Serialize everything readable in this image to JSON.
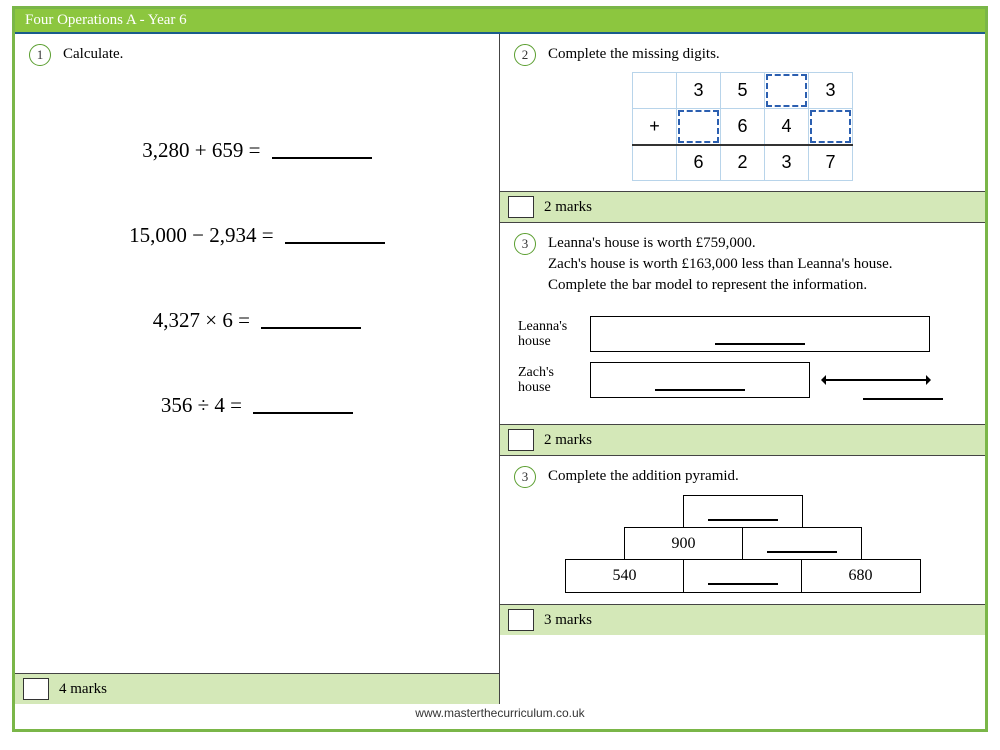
{
  "header": {
    "title": "Four Operations A - Year 6"
  },
  "footer": {
    "url": "www.masterthecurriculum.co.uk"
  },
  "colors": {
    "border_green": "#7ab648",
    "header_green": "#8cc63f",
    "marks_band": "#d4e8b8",
    "dashed_blue": "#2b5fb0",
    "grid_line": "#b8d4ea"
  },
  "left": {
    "q1": {
      "number": "1",
      "prompt": "Calculate.",
      "items": [
        {
          "expr": "3,280 + 659 ="
        },
        {
          "expr": "15,000 − 2,934 ="
        },
        {
          "expr": "4,327 × 6 ="
        },
        {
          "expr": "356 ÷ 4 ="
        }
      ],
      "marks": "4 marks"
    }
  },
  "right": {
    "q2": {
      "number": "2",
      "prompt": "Complete the missing digits.",
      "grid": {
        "row1": [
          "",
          "3",
          "5",
          "",
          "3"
        ],
        "row2": [
          "+",
          "",
          "6",
          "4",
          ""
        ],
        "sum": [
          "",
          "6",
          "2",
          "3",
          "7"
        ],
        "dashed_row1": [
          false,
          false,
          false,
          true,
          false
        ],
        "dashed_row2": [
          false,
          true,
          false,
          false,
          true
        ]
      },
      "marks": "2 marks"
    },
    "q3": {
      "number": "3",
      "prompt_lines": [
        "Leanna's house is worth £759,000.",
        "Zach's house is worth £163,000 less than Leanna's house.",
        "Complete the bar model to represent the information."
      ],
      "labels": {
        "a": "Leanna's house",
        "b": "Zach's house"
      },
      "marks": "2 marks"
    },
    "q4": {
      "number": "3",
      "prompt": "Complete the addition pyramid.",
      "pyramid": {
        "row1": [
          ""
        ],
        "row2": [
          "900",
          ""
        ],
        "row3": [
          "540",
          "",
          "680"
        ]
      },
      "marks": "3 marks"
    }
  }
}
